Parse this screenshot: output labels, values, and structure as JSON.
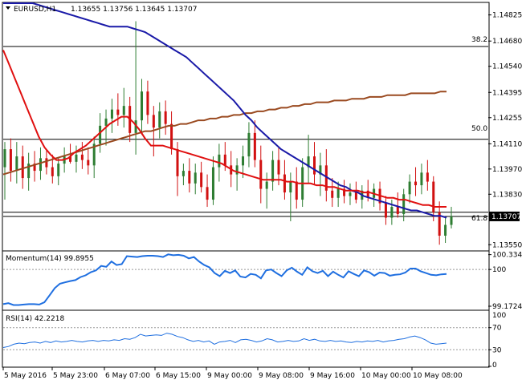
{
  "header": {
    "symbol": "EURUSD,H1",
    "ohlc": "1.13655 1.13756 1.13645 1.13707"
  },
  "fib_labels": [
    "38.2",
    "50.0",
    "61.8"
  ],
  "price_axis": {
    "ticks": [
      "1.14825",
      "1.14680",
      "1.14540",
      "1.14395",
      "1.14255",
      "1.14110",
      "1.13970",
      "1.13830",
      "1.13690",
      "1.13550"
    ],
    "current_price": "1.13707",
    "last_price_box": "1.13707"
  },
  "momentum": {
    "label": "Momentum(14) 99.8955",
    "ticks": [
      "100.3343",
      "100",
      "99.1724"
    ]
  },
  "rsi": {
    "label": "RSI(14) 42.2218",
    "ticks": [
      "70",
      "30",
      "0"
    ]
  },
  "time_axis": {
    "ticks": [
      "5 May 2016",
      "5 May 23:00",
      "6 May 07:00",
      "6 May 15:00",
      "9 May 00:00",
      "9 May 08:00",
      "9 May 16:00",
      "10 May 00:00",
      "10 May 08:00"
    ]
  },
  "colors": {
    "bull": "#2e7d32",
    "bear": "#d11010",
    "sma20": "#e01010",
    "sma100": "#1a1aa8",
    "sma200": "#9a4a20",
    "indicator": "#1f6fe0",
    "fib": "#000000"
  },
  "chart_data": [
    {
      "type": "candlestick",
      "title": "EURUSD,H1",
      "ylim": [
        1.1352,
        1.1489
      ],
      "fib_levels": [
        {
          "label": "38.2",
          "value": 1.1465
        },
        {
          "label": "50.0",
          "value": 1.14135
        },
        {
          "label": "61.8",
          "value": 1.1373
        }
      ],
      "current_price": 1.13707,
      "candles": [
        {
          "o": 1.1398,
          "h": 1.1412,
          "l": 1.138,
          "c": 1.1408
        },
        {
          "o": 1.1408,
          "h": 1.1414,
          "l": 1.139,
          "c": 1.1396
        },
        {
          "o": 1.1396,
          "h": 1.1412,
          "l": 1.1389,
          "c": 1.1404
        },
        {
          "o": 1.1404,
          "h": 1.141,
          "l": 1.1386,
          "c": 1.1392
        },
        {
          "o": 1.1392,
          "h": 1.1406,
          "l": 1.1385,
          "c": 1.14
        },
        {
          "o": 1.14,
          "h": 1.1407,
          "l": 1.139,
          "c": 1.1396
        },
        {
          "o": 1.1396,
          "h": 1.1409,
          "l": 1.1391,
          "c": 1.1403
        },
        {
          "o": 1.1403,
          "h": 1.1408,
          "l": 1.1394,
          "c": 1.1398
        },
        {
          "o": 1.1398,
          "h": 1.1405,
          "l": 1.1389,
          "c": 1.1393
        },
        {
          "o": 1.1393,
          "h": 1.1403,
          "l": 1.1388,
          "c": 1.14
        },
        {
          "o": 1.14,
          "h": 1.1409,
          "l": 1.1395,
          "c": 1.1404
        },
        {
          "o": 1.1404,
          "h": 1.1411,
          "l": 1.14,
          "c": 1.1401
        },
        {
          "o": 1.1401,
          "h": 1.141,
          "l": 1.1395,
          "c": 1.1405
        },
        {
          "o": 1.1405,
          "h": 1.1412,
          "l": 1.1397,
          "c": 1.1402
        },
        {
          "o": 1.1402,
          "h": 1.1409,
          "l": 1.1394,
          "c": 1.1399
        },
        {
          "o": 1.1399,
          "h": 1.1415,
          "l": 1.1392,
          "c": 1.1411
        },
        {
          "o": 1.1411,
          "h": 1.1428,
          "l": 1.1406,
          "c": 1.1421
        },
        {
          "o": 1.1421,
          "h": 1.143,
          "l": 1.141,
          "c": 1.1425
        },
        {
          "o": 1.1425,
          "h": 1.1436,
          "l": 1.1417,
          "c": 1.143
        },
        {
          "o": 1.143,
          "h": 1.1439,
          "l": 1.1421,
          "c": 1.1427
        },
        {
          "o": 1.1427,
          "h": 1.1442,
          "l": 1.142,
          "c": 1.1432
        },
        {
          "o": 1.1432,
          "h": 1.1437,
          "l": 1.1412,
          "c": 1.1417
        },
        {
          "o": 1.1417,
          "h": 1.1479,
          "l": 1.1405,
          "c": 1.1424
        },
        {
          "o": 1.1424,
          "h": 1.1447,
          "l": 1.1416,
          "c": 1.144
        },
        {
          "o": 1.144,
          "h": 1.1446,
          "l": 1.1422,
          "c": 1.1427
        },
        {
          "o": 1.1427,
          "h": 1.1432,
          "l": 1.1404,
          "c": 1.142
        },
        {
          "o": 1.142,
          "h": 1.1434,
          "l": 1.1414,
          "c": 1.1429
        },
        {
          "o": 1.1429,
          "h": 1.1435,
          "l": 1.1416,
          "c": 1.1422
        },
        {
          "o": 1.1422,
          "h": 1.1429,
          "l": 1.1405,
          "c": 1.1408
        },
        {
          "o": 1.1408,
          "h": 1.1412,
          "l": 1.1382,
          "c": 1.1393
        },
        {
          "o": 1.1393,
          "h": 1.14,
          "l": 1.1388,
          "c": 1.1396
        },
        {
          "o": 1.1396,
          "h": 1.1403,
          "l": 1.1384,
          "c": 1.1389
        },
        {
          "o": 1.1389,
          "h": 1.14,
          "l": 1.1383,
          "c": 1.1395
        },
        {
          "o": 1.1395,
          "h": 1.1401,
          "l": 1.1384,
          "c": 1.1387
        },
        {
          "o": 1.1387,
          "h": 1.1394,
          "l": 1.1376,
          "c": 1.138
        },
        {
          "o": 1.138,
          "h": 1.1404,
          "l": 1.1377,
          "c": 1.1398
        },
        {
          "o": 1.1398,
          "h": 1.1411,
          "l": 1.139,
          "c": 1.1405
        },
        {
          "o": 1.1405,
          "h": 1.1412,
          "l": 1.1396,
          "c": 1.1399
        },
        {
          "o": 1.1399,
          "h": 1.1407,
          "l": 1.1387,
          "c": 1.1394
        },
        {
          "o": 1.1394,
          "h": 1.1403,
          "l": 1.1385,
          "c": 1.1399
        },
        {
          "o": 1.1399,
          "h": 1.141,
          "l": 1.1392,
          "c": 1.1404
        },
        {
          "o": 1.1404,
          "h": 1.1423,
          "l": 1.1398,
          "c": 1.1417
        },
        {
          "o": 1.1417,
          "h": 1.1424,
          "l": 1.1398,
          "c": 1.1402
        },
        {
          "o": 1.1402,
          "h": 1.141,
          "l": 1.1378,
          "c": 1.1386
        },
        {
          "o": 1.1386,
          "h": 1.1395,
          "l": 1.1375,
          "c": 1.139
        },
        {
          "o": 1.139,
          "h": 1.1407,
          "l": 1.1385,
          "c": 1.1402
        },
        {
          "o": 1.1402,
          "h": 1.1409,
          "l": 1.1388,
          "c": 1.1394
        },
        {
          "o": 1.1394,
          "h": 1.1402,
          "l": 1.138,
          "c": 1.1384
        },
        {
          "o": 1.1384,
          "h": 1.1395,
          "l": 1.1368,
          "c": 1.139
        },
        {
          "o": 1.139,
          "h": 1.1398,
          "l": 1.1375,
          "c": 1.138
        },
        {
          "o": 1.138,
          "h": 1.1403,
          "l": 1.1376,
          "c": 1.1398
        },
        {
          "o": 1.1398,
          "h": 1.1416,
          "l": 1.1389,
          "c": 1.1404
        },
        {
          "o": 1.1404,
          "h": 1.1412,
          "l": 1.1388,
          "c": 1.1394
        },
        {
          "o": 1.1394,
          "h": 1.1406,
          "l": 1.1382,
          "c": 1.1399
        },
        {
          "o": 1.1399,
          "h": 1.1408,
          "l": 1.1379,
          "c": 1.1385
        },
        {
          "o": 1.1385,
          "h": 1.1392,
          "l": 1.1376,
          "c": 1.1381
        },
        {
          "o": 1.1381,
          "h": 1.139,
          "l": 1.1376,
          "c": 1.1386
        },
        {
          "o": 1.1386,
          "h": 1.1391,
          "l": 1.1378,
          "c": 1.1382
        },
        {
          "o": 1.1382,
          "h": 1.1389,
          "l": 1.1377,
          "c": 1.1384
        },
        {
          "o": 1.1384,
          "h": 1.139,
          "l": 1.1378,
          "c": 1.138
        },
        {
          "o": 1.138,
          "h": 1.1388,
          "l": 1.1375,
          "c": 1.1385
        },
        {
          "o": 1.1385,
          "h": 1.1391,
          "l": 1.1379,
          "c": 1.1381
        },
        {
          "o": 1.1381,
          "h": 1.1389,
          "l": 1.1376,
          "c": 1.1386
        },
        {
          "o": 1.1386,
          "h": 1.139,
          "l": 1.1374,
          "c": 1.1378
        },
        {
          "o": 1.1378,
          "h": 1.1382,
          "l": 1.1366,
          "c": 1.137
        },
        {
          "o": 1.137,
          "h": 1.138,
          "l": 1.1366,
          "c": 1.1376
        },
        {
          "o": 1.1376,
          "h": 1.1384,
          "l": 1.137,
          "c": 1.1372
        },
        {
          "o": 1.1372,
          "h": 1.1386,
          "l": 1.1368,
          "c": 1.1383
        },
        {
          "o": 1.1383,
          "h": 1.1394,
          "l": 1.1378,
          "c": 1.139
        },
        {
          "o": 1.139,
          "h": 1.1398,
          "l": 1.1382,
          "c": 1.1388
        },
        {
          "o": 1.1388,
          "h": 1.14,
          "l": 1.1383,
          "c": 1.1395
        },
        {
          "o": 1.1395,
          "h": 1.1402,
          "l": 1.1385,
          "c": 1.139
        },
        {
          "o": 1.139,
          "h": 1.1393,
          "l": 1.1368,
          "c": 1.1373
        },
        {
          "o": 1.1373,
          "h": 1.1379,
          "l": 1.1355,
          "c": 1.136
        },
        {
          "o": 1.136,
          "h": 1.137,
          "l": 1.1356,
          "c": 1.1366
        },
        {
          "o": 1.1366,
          "h": 1.1376,
          "l": 1.1364,
          "c": 1.13707
        }
      ],
      "sma_20": [
        1.1463,
        1.1455,
        1.1447,
        1.1439,
        1.1431,
        1.1423,
        1.1415,
        1.1409,
        1.1405,
        1.1402,
        1.1402,
        1.1403,
        1.1406,
        1.1408,
        1.141,
        1.1413,
        1.1416,
        1.1419,
        1.1422,
        1.1424,
        1.1426,
        1.1426,
        1.1423,
        1.1419,
        1.1414,
        1.141,
        1.141,
        1.141,
        1.1409,
        1.1408,
        1.1407,
        1.1406,
        1.1405,
        1.1404,
        1.1403,
        1.1402,
        1.1401,
        1.14,
        1.1398,
        1.1396,
        1.1395,
        1.1394,
        1.1393,
        1.1392,
        1.1391,
        1.1391,
        1.1391,
        1.1391,
        1.139,
        1.139,
        1.1389,
        1.1389,
        1.1389,
        1.1388,
        1.1388,
        1.1387,
        1.1387,
        1.1386,
        1.1385,
        1.1385,
        1.1385,
        1.1384,
        1.1384,
        1.1383,
        1.1382,
        1.1381,
        1.1381,
        1.138,
        1.138,
        1.1379,
        1.1378,
        1.1377,
        1.1377,
        1.1376,
        1.1376,
        1.1376
      ],
      "sma_100": [
        1.1494,
        1.1493,
        1.1492,
        1.1491,
        1.149,
        1.1489,
        1.1488,
        1.1487,
        1.1486,
        1.1485,
        1.1484,
        1.1483,
        1.1482,
        1.1481,
        1.148,
        1.1479,
        1.1478,
        1.1477,
        1.1476,
        1.1476,
        1.1476,
        1.1476,
        1.1475,
        1.1474,
        1.1473,
        1.1471,
        1.1469,
        1.1467,
        1.1465,
        1.1463,
        1.1461,
        1.1459,
        1.1456,
        1.1453,
        1.145,
        1.1447,
        1.1444,
        1.1441,
        1.1438,
        1.1435,
        1.1431,
        1.1427,
        1.1424,
        1.142,
        1.1417,
        1.1414,
        1.1411,
        1.1408,
        1.1406,
        1.1404,
        1.1402,
        1.14,
        1.1398,
        1.1396,
        1.1394,
        1.1392,
        1.139,
        1.1388,
        1.1387,
        1.1385,
        1.1384,
        1.1382,
        1.1381,
        1.138,
        1.1379,
        1.1378,
        1.1377,
        1.1376,
        1.1375,
        1.1374,
        1.1374,
        1.1373,
        1.1372,
        1.1371,
        1.1371,
        1.137
      ],
      "sma_200": [
        1.1394,
        1.1395,
        1.1396,
        1.1397,
        1.1398,
        1.1399,
        1.14,
        1.1401,
        1.1402,
        1.1403,
        1.1404,
        1.1405,
        1.1406,
        1.1407,
        1.1408,
        1.1409,
        1.141,
        1.1411,
        1.1412,
        1.1413,
        1.1414,
        1.1415,
        1.1416,
        1.1417,
        1.1418,
        1.1418,
        1.1419,
        1.142,
        1.1421,
        1.1421,
        1.1422,
        1.1422,
        1.1423,
        1.1424,
        1.1424,
        1.1425,
        1.1425,
        1.1426,
        1.1426,
        1.1427,
        1.1427,
        1.1428,
        1.1428,
        1.1429,
        1.1429,
        1.143,
        1.143,
        1.1431,
        1.1431,
        1.1432,
        1.1432,
        1.1433,
        1.1433,
        1.1434,
        1.1434,
        1.1434,
        1.1435,
        1.1435,
        1.1435,
        1.1436,
        1.1436,
        1.1436,
        1.1437,
        1.1437,
        1.1437,
        1.1438,
        1.1438,
        1.1438,
        1.1438,
        1.1439,
        1.1439,
        1.1439,
        1.1439,
        1.1439,
        1.144,
        1.144
      ]
    },
    {
      "type": "line",
      "title": "Momentum(14) 99.8955",
      "ylim": [
        99.1,
        100.4
      ],
      "reference": 100,
      "values": [
        99.22,
        99.24,
        99.2,
        99.2,
        99.21,
        99.22,
        99.22,
        99.21,
        99.26,
        99.42,
        99.58,
        99.68,
        99.71,
        99.74,
        99.76,
        99.83,
        99.87,
        99.94,
        99.98,
        100.08,
        100.06,
        100.18,
        100.1,
        100.12,
        100.3,
        100.29,
        100.28,
        100.3,
        100.31,
        100.31,
        100.3,
        100.28,
        100.34,
        100.32,
        100.33,
        100.31,
        100.25,
        100.28,
        100.18,
        100.1,
        100.05,
        99.92,
        99.85,
        99.97,
        99.92,
        99.98,
        99.84,
        99.82,
        99.9,
        99.88,
        99.8,
        99.98,
        100.0,
        99.92,
        99.85,
        99.98,
        100.04,
        99.95,
        99.88,
        100.05,
        99.96,
        99.92,
        99.97,
        99.85,
        99.95,
        99.88,
        99.82,
        99.96,
        99.9,
        99.85,
        99.98,
        99.94,
        99.86,
        99.93,
        99.92,
        99.86,
        99.88,
        99.89,
        99.93,
        100.02,
        100.02,
        99.96,
        99.92,
        99.88,
        99.87,
        99.89,
        99.9
      ]
    },
    {
      "type": "line",
      "title": "RSI(14) 42.2218",
      "ylim": [
        0,
        100
      ],
      "reference_levels": [
        70,
        30
      ],
      "values": [
        34,
        36,
        40,
        42,
        41,
        43,
        44,
        42,
        45,
        43,
        46,
        44,
        45,
        47,
        45,
        44,
        46,
        47,
        45,
        47,
        46,
        48,
        47,
        50,
        49,
        52,
        58,
        55,
        56,
        57,
        56,
        60,
        58,
        54,
        52,
        48,
        45,
        47,
        44,
        46,
        40,
        44,
        45,
        47,
        43,
        48,
        49,
        47,
        44,
        46,
        50,
        48,
        44,
        45,
        47,
        45,
        46,
        50,
        47,
        49,
        46,
        45,
        47,
        45,
        46,
        44,
        43,
        45,
        44,
        46,
        45,
        47,
        44,
        46,
        47,
        49,
        50,
        53,
        55,
        52,
        48,
        42,
        40,
        41,
        42
      ]
    }
  ]
}
